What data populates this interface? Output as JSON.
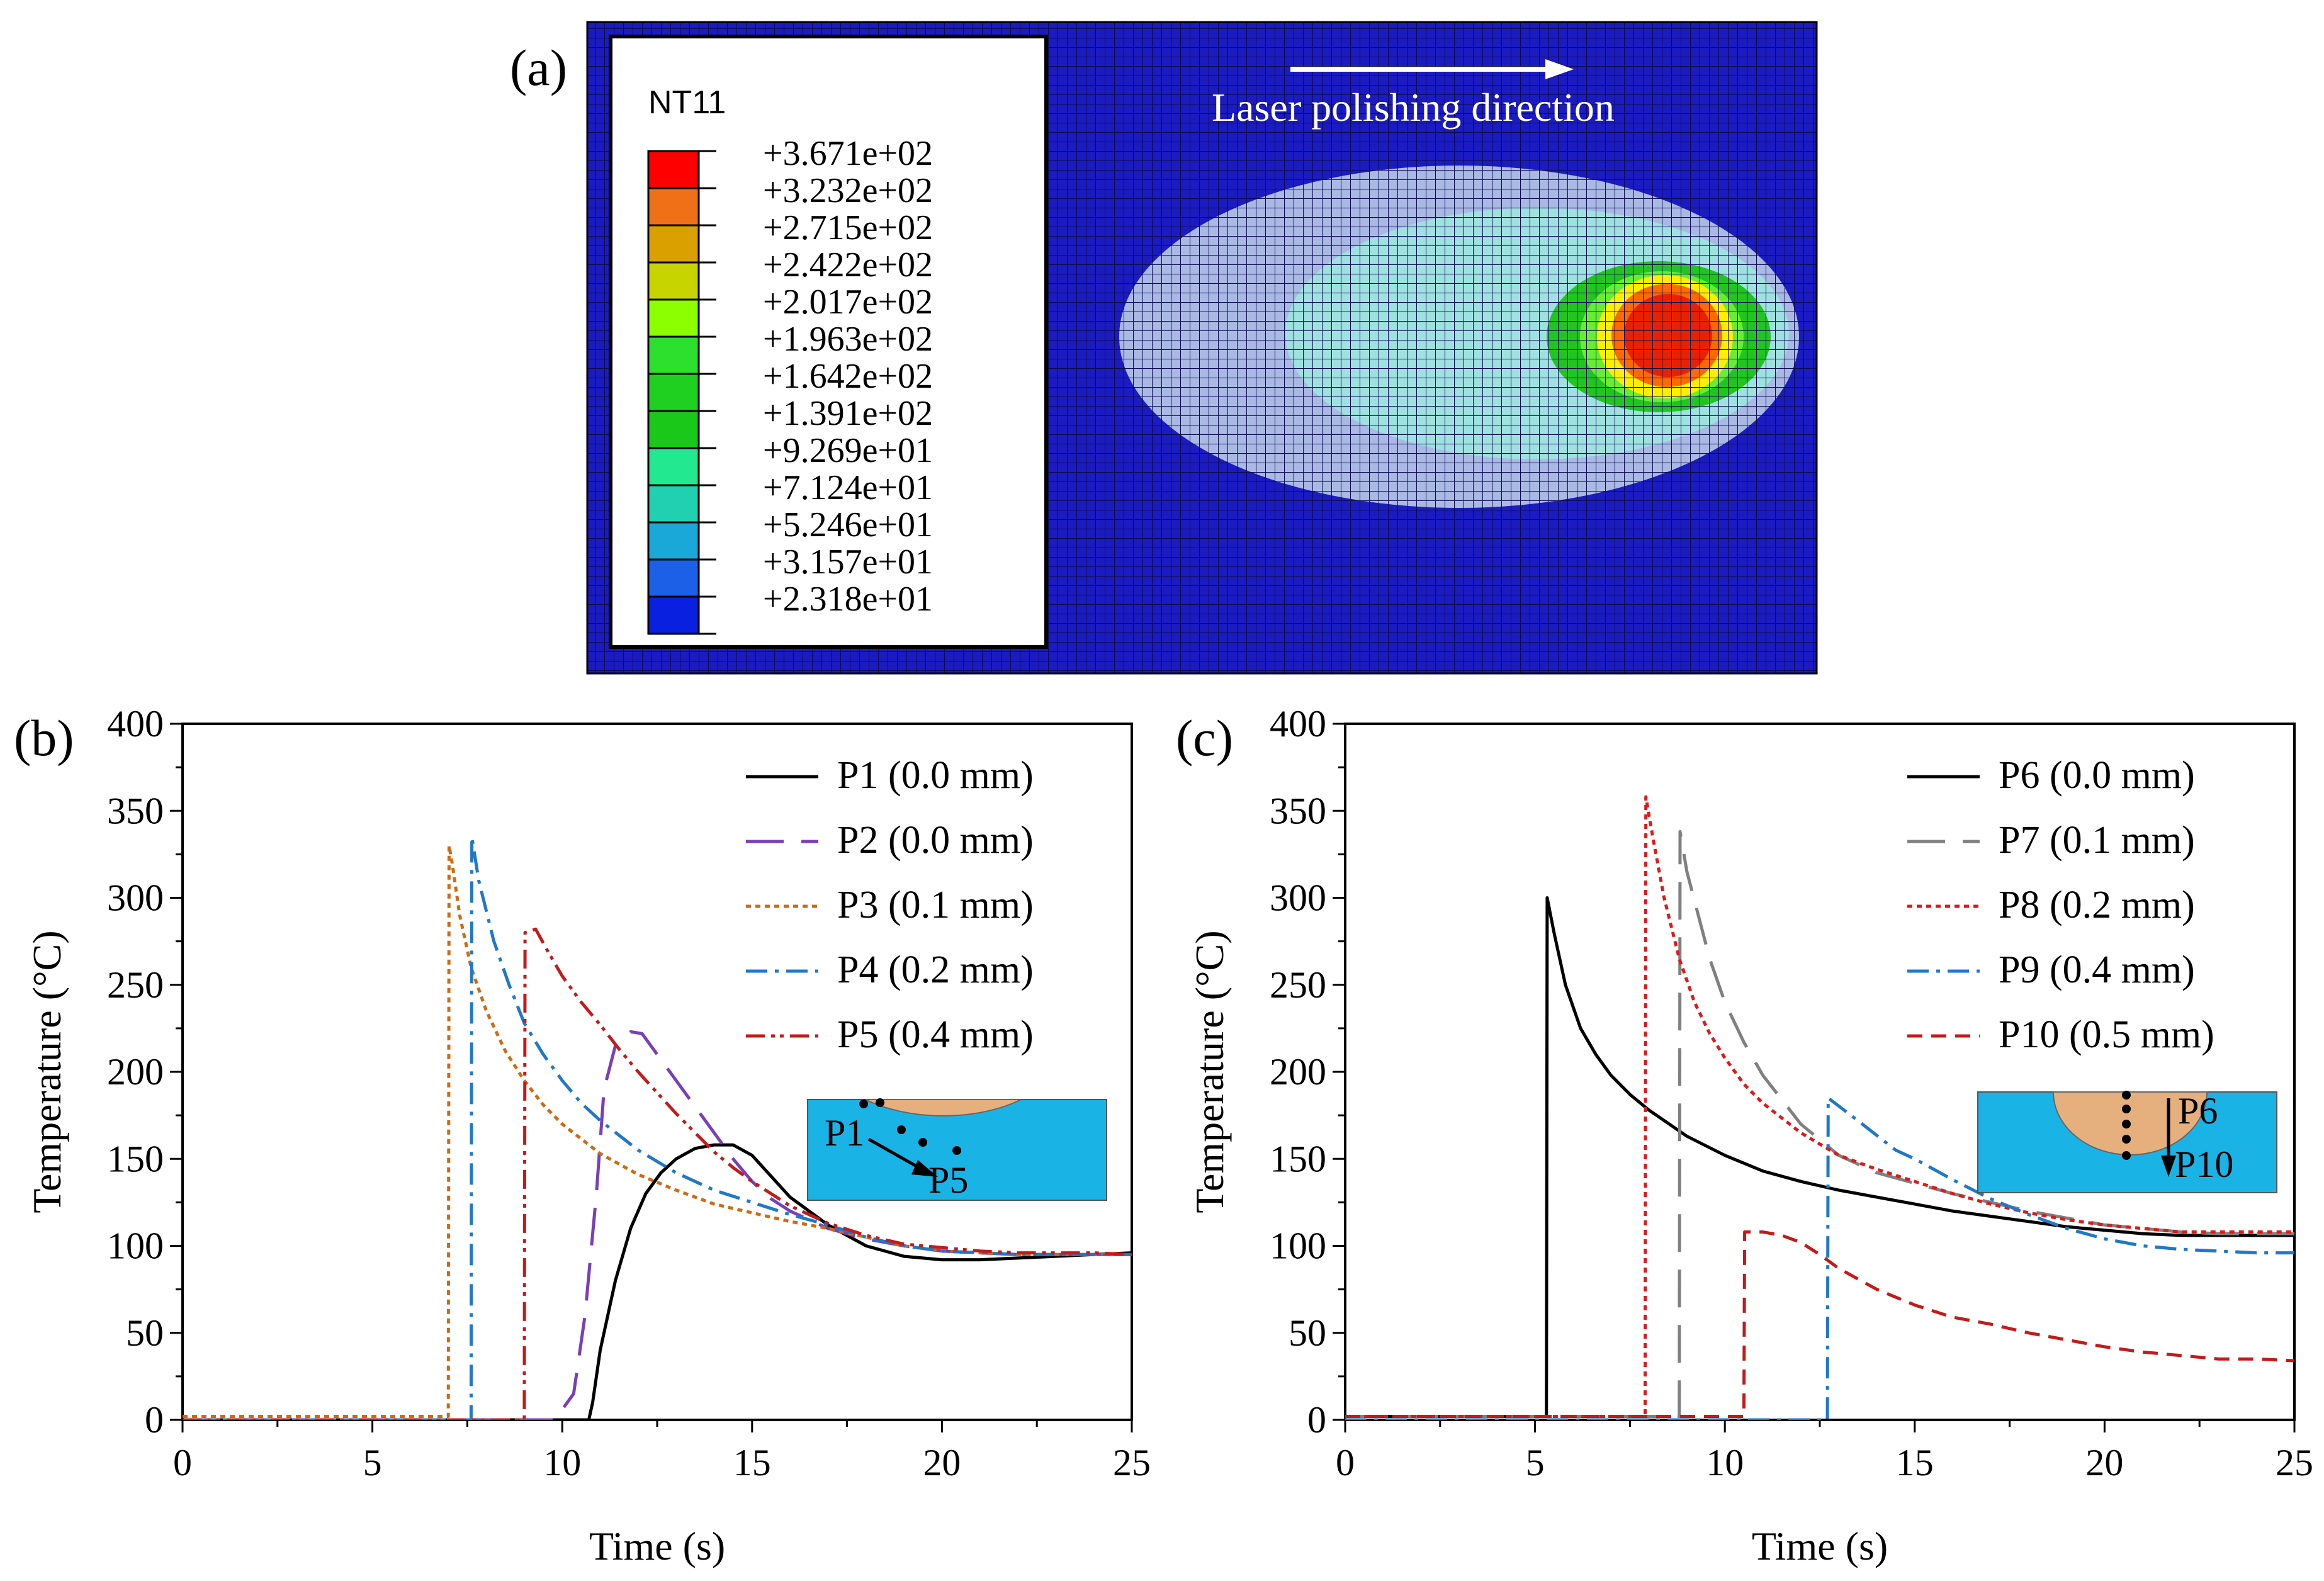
{
  "panel_a": {
    "label": "(a)",
    "legend_title": "NT11",
    "direction_label": "Laser polishing direction",
    "colors": {
      "background": "#1b1bc0",
      "grid": "#0a0a5a",
      "outer_zone": "#aab8e4",
      "middle_zone": "#9fe0e0",
      "hot_colors": [
        "#22c422",
        "#55ee33",
        "#ccdd00",
        "#ffee00",
        "#ff6600",
        "#ee2200"
      ]
    },
    "contour_levels": [
      {
        "label": "+3.671e+02",
        "color": "#ff0000"
      },
      {
        "label": "+3.232e+02",
        "color": "#f07018"
      },
      {
        "label": "+2.715e+02",
        "color": "#d9a000"
      },
      {
        "label": "+2.422e+02",
        "color": "#c8d400"
      },
      {
        "label": "+2.017e+02",
        "color": "#8cff00"
      },
      {
        "label": "+1.963e+02",
        "color": "#2ee02e"
      },
      {
        "label": "+1.642e+02",
        "color": "#20d020"
      },
      {
        "label": "+1.391e+02",
        "color": "#1ac81a"
      },
      {
        "label": "+9.269e+01",
        "color": "#22e890"
      },
      {
        "label": "+7.124e+01",
        "color": "#20d0b0"
      },
      {
        "label": "+5.246e+01",
        "color": "#1aa8d8"
      },
      {
        "label": "+3.157e+01",
        "color": "#1c60e8"
      },
      {
        "label": "+2.318e+01",
        "color": "#0a20e0"
      }
    ]
  },
  "chart_data": [
    {
      "panel": "(b)",
      "type": "line",
      "xlabel": "Time (s)",
      "ylabel": "Temperature (°C)",
      "xlim": [
        0,
        25
      ],
      "ylim": [
        0,
        400
      ],
      "xticks": [
        0,
        5,
        10,
        15,
        20,
        25
      ],
      "yticks": [
        0,
        50,
        100,
        150,
        200,
        250,
        300,
        350,
        400
      ],
      "legend_position": "top-right",
      "inset": {
        "start_label": "P1",
        "end_label": "P5"
      },
      "series": [
        {
          "name": "P1 (0.0 mm)",
          "color": "#000000",
          "dash": "none",
          "x": [
            0,
            10.7,
            10.8,
            11.0,
            11.4,
            11.8,
            12.2,
            12.6,
            13.0,
            13.5,
            14.0,
            14.5,
            15.0,
            15.5,
            16.0,
            17.0,
            18.0,
            19.0,
            20.0,
            21.0,
            22.0,
            23.0,
            24.0,
            25.0
          ],
          "y": [
            0,
            0,
            10,
            40,
            80,
            110,
            130,
            142,
            150,
            156,
            158,
            158,
            152,
            140,
            128,
            112,
            100,
            94,
            92,
            92,
            93,
            94,
            95,
            96
          ]
        },
        {
          "name": "P2 (0.0 mm)",
          "color": "#7a3fb8",
          "dash": "60,28",
          "x": [
            0,
            9.8,
            10.3,
            10.6,
            10.9,
            11.1,
            11.4,
            11.8,
            12.1,
            12.5,
            13.0,
            13.5,
            14.0,
            14.5,
            15.0,
            15.5,
            16.0,
            17.0,
            18.0,
            19.0,
            20.0,
            21.0,
            22.0,
            23.0,
            24.0,
            25.0
          ],
          "y": [
            0,
            0,
            15,
            60,
            130,
            190,
            215,
            223,
            222,
            210,
            195,
            180,
            165,
            150,
            137,
            127,
            120,
            110,
            104,
            100,
            97,
            96,
            95,
            95,
            95,
            95
          ]
        },
        {
          "name": "P3 (0.1 mm)",
          "color": "#d06a10",
          "dash": "8,7",
          "x": [
            0,
            7.0,
            7.02,
            7.1,
            7.3,
            7.6,
            8.0,
            8.5,
            9.0,
            9.5,
            10.0,
            11.0,
            12.0,
            13.0,
            14.0,
            15.0,
            16.0,
            17.0,
            18.0,
            19.0,
            20.0,
            21.0,
            22.0,
            23.0,
            24.0,
            25.0
          ],
          "y": [
            2,
            2,
            330,
            320,
            290,
            260,
            235,
            212,
            195,
            181,
            170,
            153,
            141,
            132,
            124,
            119,
            114,
            110,
            105,
            100,
            97,
            96,
            95,
            95,
            95,
            95
          ]
        },
        {
          "name": "P4 (0.2 mm)",
          "color": "#1f78c8",
          "dash": "34,12,6,12",
          "x": [
            0,
            7.6,
            7.62,
            7.8,
            8.2,
            8.6,
            9.0,
            9.5,
            10.0,
            10.5,
            11.0,
            12.0,
            13.0,
            14.0,
            15.0,
            16.0,
            17.0,
            18.0,
            19.0,
            20.0,
            21.0,
            22.0,
            23.0,
            24.0,
            25.0
          ],
          "y": [
            0,
            0,
            335,
            310,
            275,
            250,
            228,
            210,
            195,
            182,
            172,
            155,
            142,
            132,
            125,
            118,
            112,
            105,
            100,
            97,
            96,
            95,
            95,
            95,
            95
          ]
        },
        {
          "name": "P5 (0.4 mm)",
          "color": "#c41a1a",
          "dash": "30,10,6,8,6,10",
          "x": [
            0,
            9.0,
            9.02,
            9.3,
            9.6,
            10.0,
            10.5,
            11.0,
            11.5,
            12.0,
            12.5,
            13.0,
            13.5,
            14.0,
            14.5,
            15.0,
            16.0,
            17.0,
            18.0,
            19.0,
            20.0,
            21.0,
            22.0,
            23.0,
            24.0,
            25.0
          ],
          "y": [
            0,
            0,
            280,
            282,
            270,
            255,
            240,
            227,
            213,
            200,
            188,
            176,
            165,
            154,
            145,
            137,
            123,
            113,
            106,
            101,
            99,
            97,
            96,
            96,
            96,
            95
          ]
        }
      ]
    },
    {
      "panel": "(c)",
      "type": "line",
      "xlabel": "Time (s)",
      "ylabel": "Temperature (°C)",
      "xlim": [
        0,
        25
      ],
      "ylim": [
        0,
        400
      ],
      "xticks": [
        0,
        5,
        10,
        15,
        20,
        25
      ],
      "yticks": [
        0,
        50,
        100,
        150,
        200,
        250,
        300,
        350,
        400
      ],
      "legend_position": "top-right",
      "inset": {
        "start_label": "P6",
        "end_label": "P10"
      },
      "series": [
        {
          "name": "P6 (0.0 mm)",
          "color": "#000000",
          "dash": "none",
          "x": [
            0,
            5.3,
            5.32,
            5.5,
            5.8,
            6.2,
            6.6,
            7.0,
            7.5,
            8.0,
            9.0,
            10.0,
            11.0,
            12.0,
            13.0,
            14.0,
            15.0,
            16.0,
            17.0,
            18.0,
            19.0,
            20.0,
            21.0,
            22.0,
            23.0,
            24.0,
            25.0
          ],
          "y": [
            2,
            2,
            300,
            280,
            250,
            225,
            210,
            198,
            187,
            178,
            163,
            152,
            143,
            137,
            132,
            128,
            124,
            120,
            117,
            114,
            111,
            109,
            107,
            106,
            106,
            106,
            106
          ]
        },
        {
          "name": "P7 (0.1 mm)",
          "color": "#808080",
          "dash": "60,28",
          "x": [
            0,
            8.8,
            8.82,
            9.0,
            9.3,
            9.6,
            10.0,
            10.5,
            11.0,
            12.0,
            13.0,
            14.0,
            15.0,
            16.0,
            17.0,
            18.0,
            19.0,
            20.0,
            21.0,
            22.0,
            23.0,
            24.0,
            25.0
          ],
          "y": [
            2,
            2,
            338,
            315,
            290,
            265,
            240,
            217,
            198,
            170,
            152,
            142,
            136,
            130,
            125,
            120,
            116,
            112,
            110,
            108,
            107,
            107,
            107
          ]
        },
        {
          "name": "P8 (0.2 mm)",
          "color": "#e01818",
          "dash": "8,7",
          "x": [
            0,
            7.9,
            7.92,
            8.1,
            8.4,
            8.8,
            9.2,
            9.6,
            10.0,
            10.5,
            11.0,
            12.0,
            13.0,
            14.0,
            15.0,
            16.0,
            17.0,
            18.0,
            19.0,
            20.0,
            21.0,
            22.0,
            23.0,
            24.0,
            25.0
          ],
          "y": [
            2,
            2,
            358,
            335,
            300,
            265,
            240,
            222,
            208,
            193,
            182,
            165,
            152,
            144,
            137,
            130,
            124,
            119,
            115,
            112,
            110,
            108,
            108,
            108,
            108
          ]
        },
        {
          "name": "P9 (0.4 mm)",
          "color": "#1f78c8",
          "dash": "34,12,6,12",
          "x": [
            0,
            12.7,
            12.72,
            13.5,
            14.5,
            15.0,
            16.0,
            17.0,
            18.0,
            19.0,
            20.0,
            21.0,
            22.0,
            23.0,
            24.0,
            25.0
          ],
          "y": [
            0,
            0,
            185,
            172,
            155,
            150,
            138,
            127,
            118,
            110,
            104,
            100,
            98,
            97,
            96,
            96
          ]
        },
        {
          "name": "P10 (0.5 mm)",
          "color": "#c41a1a",
          "dash": "24,14",
          "x": [
            0,
            10.5,
            10.52,
            11.0,
            11.5,
            12.0,
            12.5,
            13.0,
            14.0,
            15.0,
            16.0,
            17.0,
            18.0,
            19.0,
            20.0,
            21.0,
            22.0,
            23.0,
            24.0,
            25.0
          ],
          "y": [
            2,
            2,
            108,
            108,
            106,
            102,
            95,
            87,
            75,
            66,
            59,
            55,
            50,
            46,
            42,
            39,
            37,
            35,
            35,
            34
          ]
        }
      ]
    }
  ]
}
